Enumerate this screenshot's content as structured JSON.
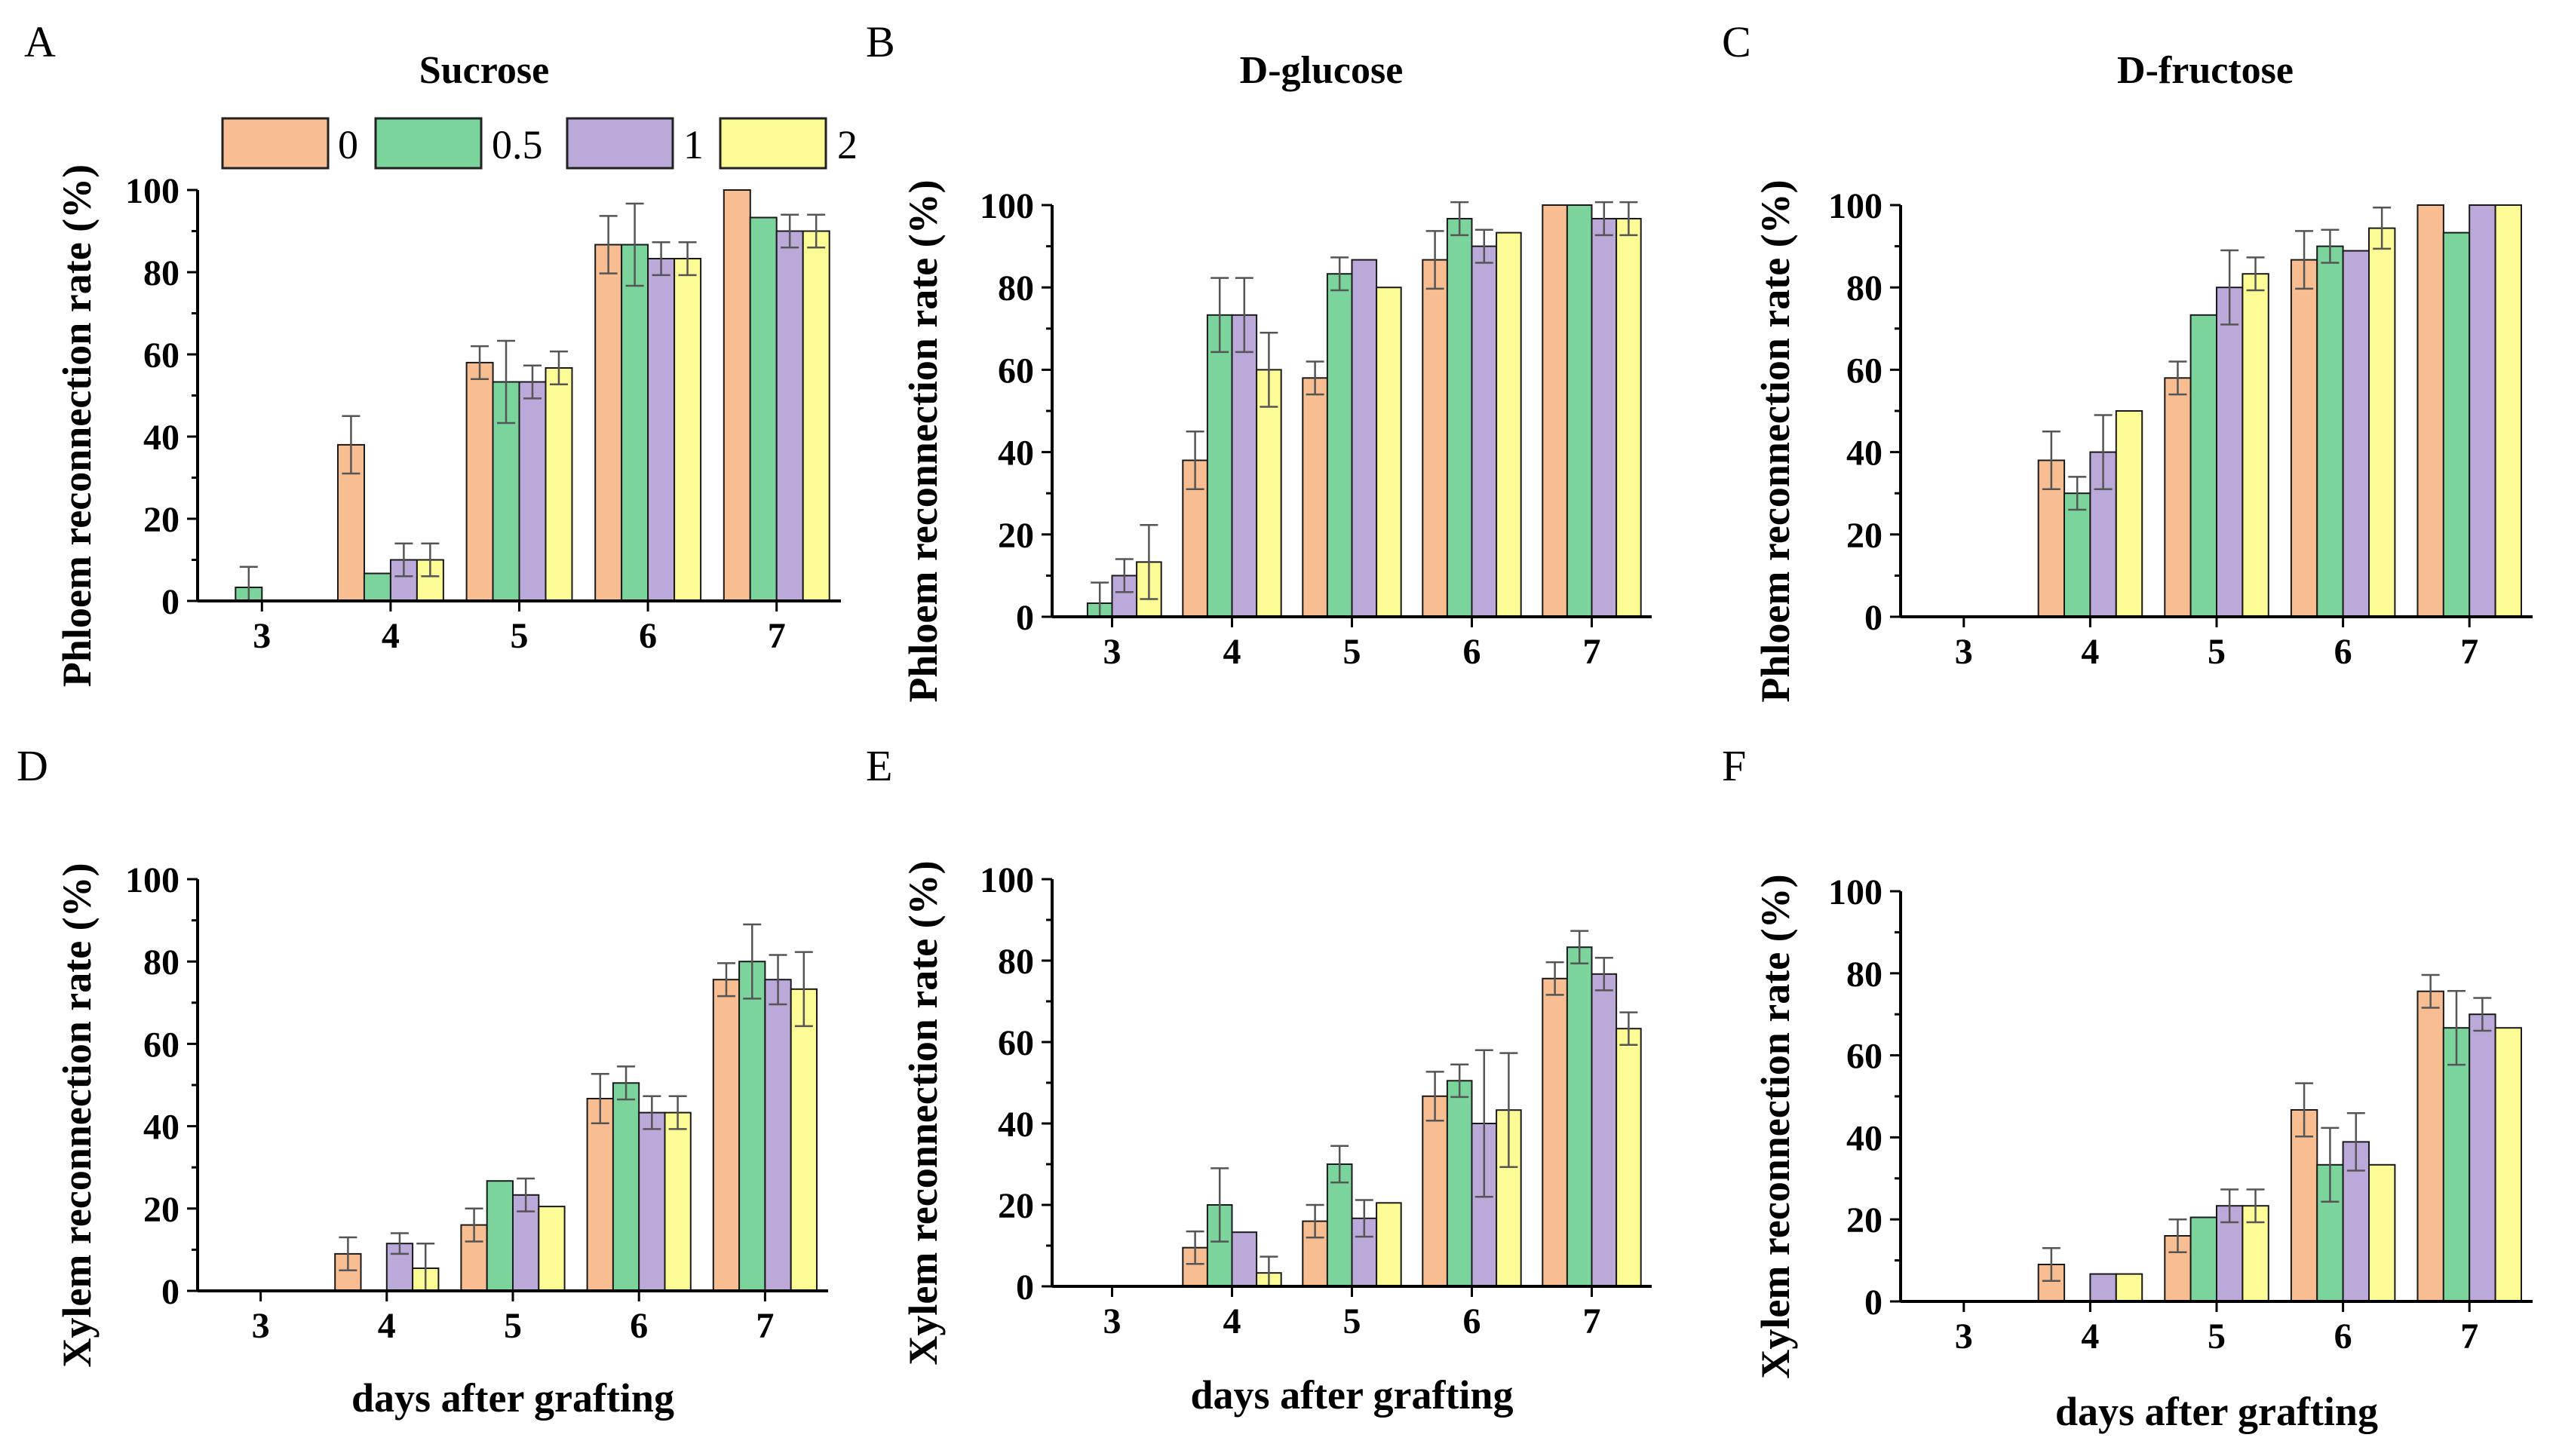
{
  "colors": {
    "series": [
      "#F8BE91",
      "#7AD49C",
      "#BBA9DA",
      "#FDFB95"
    ],
    "bar_edge": "#1a1a1a",
    "error_bar": "#555555",
    "axis": "#000000"
  },
  "legend": {
    "title": "Sucrose",
    "items": [
      "0",
      "0.5",
      "1",
      "2"
    ]
  },
  "chart_data": [
    {
      "panel": "A",
      "type": "bar",
      "title": "Sucrose",
      "categories": [
        "3",
        "4",
        "5",
        "6",
        "7"
      ],
      "xlabel": "",
      "ylabel": "Phloem reconnection rate (%)",
      "ylim": [
        0,
        100
      ],
      "yticks": [
        "0",
        "20",
        "40",
        "60",
        "80",
        "100"
      ],
      "series": [
        {
          "name": "0",
          "values": [
            0,
            38,
            58,
            86.7,
            100
          ],
          "errors": [
            0,
            7,
            4,
            7,
            0
          ]
        },
        {
          "name": "0.5",
          "values": [
            3.3,
            6.7,
            53.3,
            86.7,
            93.3
          ],
          "errors": [
            5,
            0,
            10,
            10,
            0
          ]
        },
        {
          "name": "1",
          "values": [
            0,
            10,
            53.3,
            83.3,
            90
          ],
          "errors": [
            0,
            4,
            4,
            4,
            4
          ]
        },
        {
          "name": "2",
          "values": [
            0,
            10,
            56.7,
            83.3,
            90
          ],
          "errors": [
            0,
            4,
            4,
            4,
            4
          ]
        }
      ]
    },
    {
      "panel": "B",
      "type": "bar",
      "title": "D-glucose",
      "categories": [
        "3",
        "4",
        "5",
        "6",
        "7"
      ],
      "xlabel": "",
      "ylabel": "Phloem reconnection rate (%)",
      "ylim": [
        0,
        100
      ],
      "yticks": [
        "0",
        "20",
        "40",
        "60",
        "80",
        "100"
      ],
      "series": [
        {
          "name": "0",
          "values": [
            0,
            38,
            58,
            86.7,
            100
          ],
          "errors": [
            0,
            7,
            4,
            7,
            0
          ]
        },
        {
          "name": "0.5",
          "values": [
            3.3,
            73.3,
            83.3,
            96.7,
            100
          ],
          "errors": [
            5,
            9,
            4,
            4,
            0
          ]
        },
        {
          "name": "1",
          "values": [
            10,
            73.3,
            86.7,
            90,
            96.7
          ],
          "errors": [
            4,
            9,
            0,
            4,
            4
          ]
        },
        {
          "name": "2",
          "values": [
            13.3,
            60,
            80,
            93.3,
            96.7
          ],
          "errors": [
            9,
            9,
            0,
            0,
            4
          ]
        }
      ]
    },
    {
      "panel": "C",
      "type": "bar",
      "title": "D-fructose",
      "categories": [
        "3",
        "4",
        "5",
        "6",
        "7"
      ],
      "xlabel": "",
      "ylabel": "Phloem reconnection rate (%)",
      "ylim": [
        0,
        100
      ],
      "yticks": [
        "0",
        "20",
        "40",
        "60",
        "80",
        "100"
      ],
      "series": [
        {
          "name": "0",
          "values": [
            0,
            38,
            58,
            86.7,
            100
          ],
          "errors": [
            0,
            7,
            4,
            7,
            0
          ]
        },
        {
          "name": "0.5",
          "values": [
            0,
            30,
            73.3,
            90,
            93.3
          ],
          "errors": [
            0,
            4,
            0,
            4,
            0
          ]
        },
        {
          "name": "1",
          "values": [
            0,
            40,
            80,
            88.9,
            100
          ],
          "errors": [
            0,
            9,
            9,
            0,
            0
          ]
        },
        {
          "name": "2",
          "values": [
            0,
            50,
            83.3,
            94.4,
            100
          ],
          "errors": [
            0,
            0,
            4,
            5,
            0
          ]
        }
      ]
    },
    {
      "panel": "D",
      "type": "bar",
      "title": "",
      "categories": [
        "3",
        "4",
        "5",
        "6",
        "7"
      ],
      "xlabel": "days after grafting",
      "ylabel": "Xylem reconnection rate (%)",
      "ylim": [
        0,
        100
      ],
      "yticks": [
        "0",
        "20",
        "40",
        "60",
        "80",
        "100"
      ],
      "series": [
        {
          "name": "0",
          "values": [
            0,
            9,
            16,
            46.7,
            75.6
          ],
          "errors": [
            0,
            4,
            4,
            6,
            4
          ]
        },
        {
          "name": "0.5",
          "values": [
            0,
            0,
            26.7,
            50.5,
            80
          ],
          "errors": [
            0,
            0,
            0,
            4,
            9
          ]
        },
        {
          "name": "1",
          "values": [
            0,
            11.5,
            23.3,
            43.3,
            75.6
          ],
          "errors": [
            0,
            2.5,
            4,
            4,
            6
          ]
        },
        {
          "name": "2",
          "values": [
            0,
            5.5,
            20.5,
            43.3,
            73.3
          ],
          "errors": [
            0,
            6,
            0,
            4,
            9
          ]
        }
      ]
    },
    {
      "panel": "E",
      "type": "bar",
      "title": "",
      "categories": [
        "3",
        "4",
        "5",
        "6",
        "7"
      ],
      "xlabel": "days after grafting",
      "ylabel": "Xylem reconnection rate (%)",
      "ylim": [
        0,
        100
      ],
      "yticks": [
        "0",
        "20",
        "40",
        "60",
        "80",
        "100"
      ],
      "series": [
        {
          "name": "0",
          "values": [
            0,
            9.5,
            16,
            46.7,
            75.6
          ],
          "errors": [
            0,
            4,
            4,
            6,
            4
          ]
        },
        {
          "name": "0.5",
          "values": [
            0,
            20,
            30,
            50.5,
            83.3
          ],
          "errors": [
            0,
            9,
            4.5,
            4,
            4
          ]
        },
        {
          "name": "1",
          "values": [
            0,
            13.3,
            16.7,
            40,
            76.7
          ],
          "errors": [
            0,
            0,
            4.5,
            18,
            4
          ]
        },
        {
          "name": "2",
          "values": [
            0,
            3.3,
            20.5,
            43.3,
            63.3
          ],
          "errors": [
            0,
            4,
            0,
            14,
            4
          ]
        }
      ]
    },
    {
      "panel": "F",
      "type": "bar",
      "title": "",
      "categories": [
        "3",
        "4",
        "5",
        "6",
        "7"
      ],
      "xlabel": "days after grafting",
      "ylabel": "Xylem reconnection rate (%)",
      "ylim": [
        0,
        100
      ],
      "yticks": [
        "0",
        "20",
        "40",
        "60",
        "80",
        "100"
      ],
      "series": [
        {
          "name": "0",
          "values": [
            0,
            9,
            16,
            46.7,
            75.6
          ],
          "errors": [
            0,
            4,
            4,
            6.5,
            4
          ]
        },
        {
          "name": "0.5",
          "values": [
            0,
            0,
            20.5,
            33.3,
            66.7
          ],
          "errors": [
            0,
            0,
            0,
            9,
            9
          ]
        },
        {
          "name": "1",
          "values": [
            0,
            6.7,
            23.3,
            38.9,
            70
          ],
          "errors": [
            0,
            0,
            4,
            7,
            4
          ]
        },
        {
          "name": "2",
          "values": [
            0,
            6.7,
            23.3,
            33.3,
            66.7
          ],
          "errors": [
            0,
            0,
            4,
            0,
            0
          ]
        }
      ]
    }
  ]
}
